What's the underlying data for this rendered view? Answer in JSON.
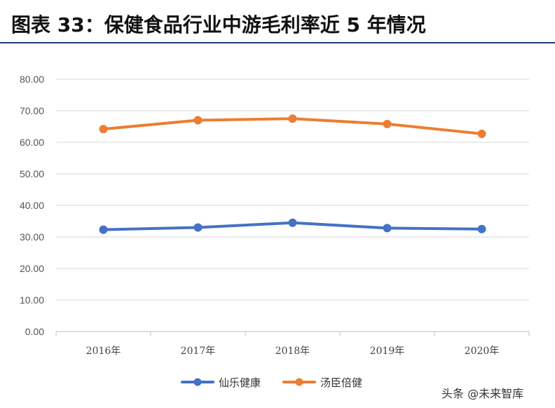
{
  "title": "图表 33：保健食品行业中游毛利率近 5 年情况",
  "watermark": "头条 @未来智库",
  "chart_data": {
    "type": "line",
    "categories": [
      "2016年",
      "2017年",
      "2018年",
      "2019年",
      "2020年"
    ],
    "series": [
      {
        "name": "仙乐健康",
        "color": "#4472c4",
        "values": [
          32.3,
          33.0,
          34.5,
          32.8,
          32.5
        ]
      },
      {
        "name": "汤臣倍健",
        "color": "#ed7d31",
        "values": [
          64.2,
          67.0,
          67.5,
          65.8,
          62.7
        ]
      }
    ],
    "yticks": [
      "0.00",
      "10.00",
      "20.00",
      "30.00",
      "40.00",
      "50.00",
      "60.00",
      "70.00",
      "80.00"
    ],
    "ylim": [
      0,
      80
    ],
    "grid": true,
    "legend": "bottom",
    "xlabel": "",
    "ylabel": ""
  }
}
